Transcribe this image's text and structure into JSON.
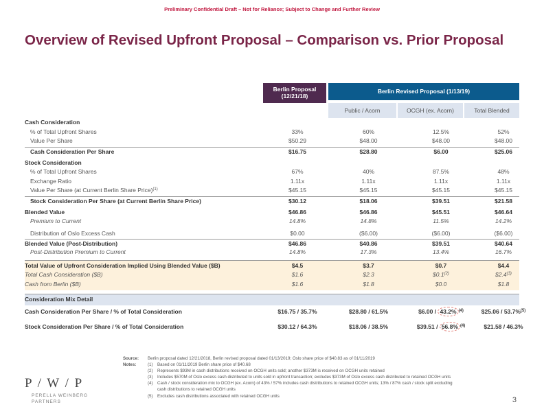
{
  "banner": "Preliminary Confidential Draft – Not for Reliance; Subject to Change and Further Review",
  "title": "Overview of Revised Upfront Proposal – Comparison vs. Prior Proposal",
  "header": {
    "prior_line1": "Berlin Proposal",
    "prior_line2": "(12/21/18)",
    "revised": "Berlin Revised Proposal (1/13/19)",
    "sub1": "Public / Acorn",
    "sub2": "OCGH (ex. Acorn)",
    "sub3": "Total Blended"
  },
  "rows": {
    "cash_head": "Cash Consideration",
    "pct_cash": {
      "label": "% of Total Upfront Shares",
      "v": [
        "33%",
        "60%",
        "12.5%",
        "52%"
      ]
    },
    "vps": {
      "label": "Value Per Share",
      "v": [
        "$50.29",
        "$48.00",
        "$48.00",
        "$48.00"
      ]
    },
    "cash_per_share": {
      "label": "Cash Consideration Per Share",
      "v": [
        "$16.75",
        "$28.80",
        "$6.00",
        "$25.06"
      ]
    },
    "stock_head": "Stock Consideration",
    "pct_stock": {
      "label": "% of Total Upfront Shares",
      "v": [
        "67%",
        "40%",
        "87.5%",
        "48%"
      ]
    },
    "exch": {
      "label": "Exchange Ratio",
      "v": [
        "1.11x",
        "1.11x",
        "1.11x",
        "1.11x"
      ]
    },
    "vps_berlin": {
      "label": "Value Per Share (at Current Berlin Share Price)",
      "sup": "(1)",
      "v": [
        "$45.15",
        "$45.15",
        "$45.15",
        "$45.15"
      ]
    },
    "stock_per_share": {
      "label": "Stock Consideration Per Share (at Current Berlin Share Price)",
      "v": [
        "$30.12",
        "$18.06",
        "$39.51",
        "$21.58"
      ]
    },
    "blended": {
      "label": "Blended Value",
      "v": [
        "$46.86",
        "$46.86",
        "$45.51",
        "$46.64"
      ]
    },
    "premium": {
      "label": "Premium to Current",
      "v": [
        "14.8%",
        "14.8%",
        "11.5%",
        "14.2%"
      ]
    },
    "distribution": {
      "label": "Distribution of Oslo Excess Cash",
      "v": [
        "$0.00",
        "($6.00)",
        "($6.00)",
        "($6.00)"
      ]
    },
    "blended_post": {
      "label": "Blended Value (Post-Distribution)",
      "v": [
        "$46.86",
        "$40.86",
        "$39.51",
        "$40.64"
      ]
    },
    "post_premium": {
      "label": "Post-Distribution Premium to Current",
      "v": [
        "14.8%",
        "17.3%",
        "13.4%",
        "16.7%"
      ]
    },
    "total_value": {
      "label": "Total Value of Upfront Consideration Implied Using Blended Value ($B)",
      "v": [
        "$4.5",
        "$3.7",
        "$0.7",
        "$4.4"
      ]
    },
    "total_cash": {
      "label": "Total Cash Consideration ($B)",
      "v": [
        "$1.6",
        "$2.3",
        "$0.1",
        "$2.4"
      ],
      "sup3": "(2)",
      "sup4": "(3)"
    },
    "cash_berlin": {
      "label": "Cash from Berlin ($B)",
      "v": [
        "$1.6",
        "$1.8",
        "$0.0",
        "$1.8"
      ]
    },
    "mix_head": "Consideration Mix Detail",
    "mix_cash": {
      "label": "Cash Consideration Per Share / % of Total Consideration",
      "v1": "$16.75 / 35.7%",
      "v2": "$28.80 / 61.5%",
      "v3a": "$6.00 /",
      "v3b": "43.2%",
      "sup3": "(4)",
      "v4": "$25.06 / 53.7%",
      "sup4": "(5)"
    },
    "mix_stock": {
      "label": "Stock Consideration Per Share  / % of Total Consideration",
      "v1": "$30.12 / 64.3%",
      "v2": "$18.06 / 38.5%",
      "v3a": "$39.51 /",
      "v3b": "56.8%",
      "sup3": "(4)",
      "v4": "$21.58 / 46.3%"
    }
  },
  "footnotes": {
    "source_label": "Source:",
    "source": "Berlin proposal dated 12/21/2018, Berlin revised proposal dated 01/13/2019; Oslo share price of $40.83 as of 01/11/2019",
    "notes_label": "Notes:",
    "n1": "Based on 01/11/2019 Berlin share price of $40.68",
    "n2": "Represents $93M in cash distributions received on OCGH units sold; another $373M is received on OCGH units retained",
    "n3": "Includes $570M of Oslo excess cash distributed to units sold in upfront transaction; excludes $373M of Oslo excess cash distributed to retained OCGH units",
    "n4a": "Cash / stock consideration mix to OCGH (ex. Acorn) of 43% / 57% includes cash distributions to retained OCGH units; 13% / 87% cash / stock split excluding",
    "n4b": "cash distributions to retained OCGH units",
    "n5": "Excludes cash distributions associated with retained OCGH units",
    "k1": "(1)",
    "k2": "(2)",
    "k3": "(3)",
    "k4": "(4)",
    "k5": "(5)"
  },
  "logo": {
    "mark": "P / W / P",
    "line1": "PERELLA WEINBERG",
    "line2": "PARTNERS"
  },
  "page_number": "3"
}
